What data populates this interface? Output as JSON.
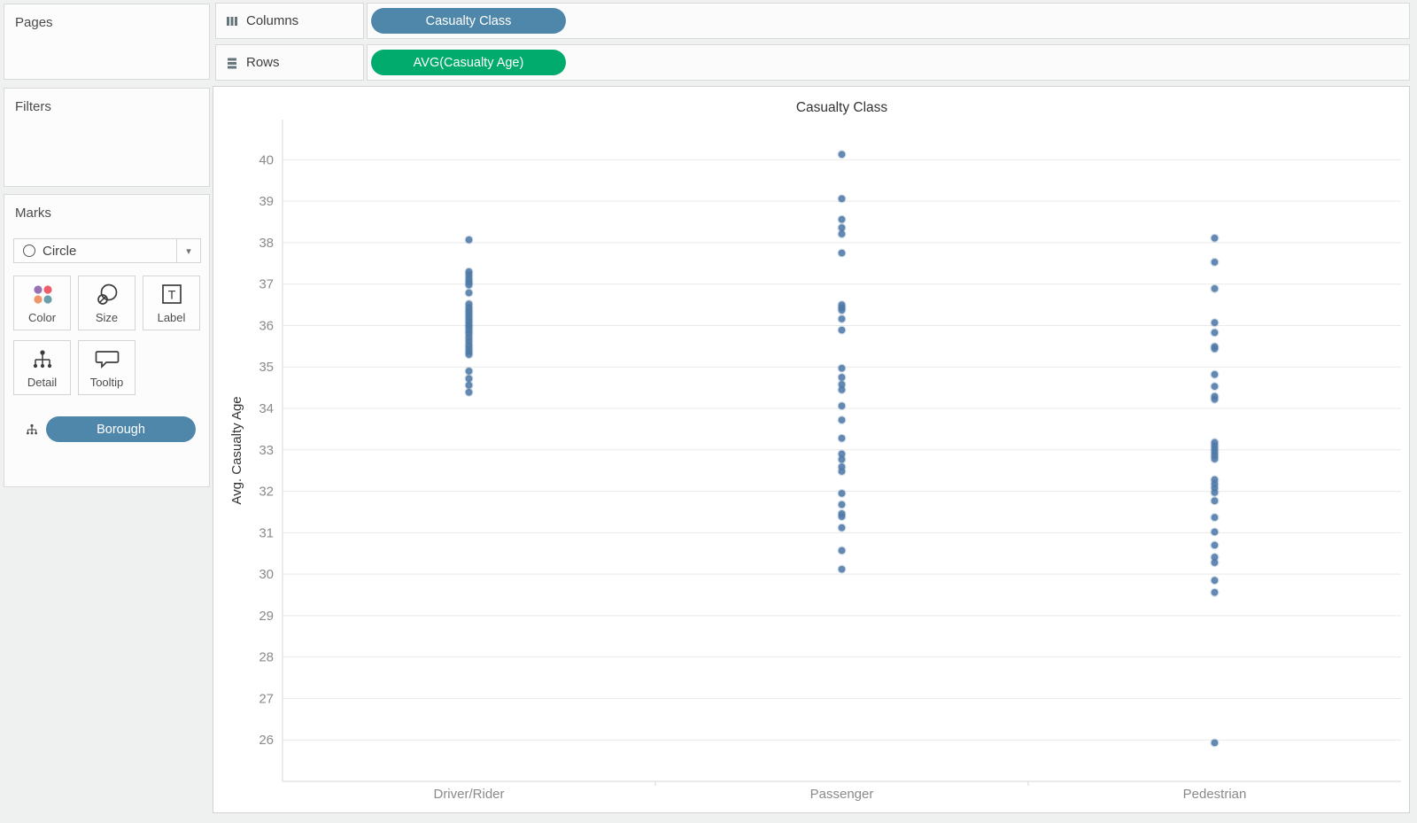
{
  "left_panel": {
    "pages": {
      "title": "Pages"
    },
    "filters": {
      "title": "Filters"
    },
    "marks": {
      "title": "Marks",
      "mark_type": "Circle",
      "buttons": [
        {
          "label": "Color",
          "icon": "color-dots-icon"
        },
        {
          "label": "Size",
          "icon": "size-circles-icon"
        },
        {
          "label": "Label",
          "icon": "label-t-icon"
        },
        {
          "label": "Detail",
          "icon": "detail-tree-icon"
        },
        {
          "label": "Tooltip",
          "icon": "tooltip-bubble-icon"
        }
      ],
      "color_icon_dots": [
        "#9672b4",
        "#ee5d6c",
        "#f0956a",
        "#6a9fab"
      ],
      "pills": [
        {
          "label": "Borough",
          "color": "#4f87aa",
          "icon": "detail-tree-icon"
        }
      ]
    }
  },
  "shelves": {
    "columns": {
      "label": "Columns",
      "pills": [
        {
          "label": "Casualty Class",
          "color": "#4f87aa"
        }
      ]
    },
    "rows": {
      "label": "Rows",
      "pills": [
        {
          "label": "AVG(Casualty Age)",
          "color": "#00ab6d"
        }
      ]
    }
  },
  "chart_data": {
    "type": "scatter",
    "title": "Casualty Class",
    "xlabel": "",
    "ylabel": "Avg. Casualty Age",
    "categories": [
      "Driver/Rider",
      "Passenger",
      "Pedestrian"
    ],
    "ylim": [
      25.0,
      40.97
    ],
    "yticks": [
      26,
      27,
      28,
      29,
      30,
      31,
      32,
      33,
      34,
      35,
      36,
      37,
      38,
      39,
      40
    ],
    "grid": true,
    "legend": "none",
    "marker_color": "#4e79a7",
    "grid_color": "#e9e9e9",
    "axis_color": "#d7d7d7",
    "tick_label_color": "#8a8a8a",
    "title_color": "#333333",
    "series": [
      {
        "name": "Driver/Rider",
        "values": [
          38.07,
          37.3,
          37.22,
          37.13,
          37.05,
          36.98,
          36.79,
          36.52,
          36.43,
          36.35,
          36.27,
          36.19,
          36.11,
          36.03,
          35.96,
          35.88,
          35.8,
          35.71,
          35.62,
          35.53,
          35.45,
          35.37,
          35.3,
          34.9,
          34.72,
          34.56,
          34.39
        ]
      },
      {
        "name": "Passenger",
        "values": [
          40.13,
          39.06,
          38.56,
          38.36,
          38.21,
          37.75,
          36.5,
          36.43,
          36.37,
          36.16,
          35.89,
          34.97,
          34.75,
          34.58,
          34.45,
          34.06,
          33.72,
          33.28,
          32.9,
          32.77,
          32.59,
          32.48,
          31.95,
          31.68,
          31.46,
          31.39,
          31.12,
          30.57,
          30.12
        ]
      },
      {
        "name": "Pedestrian",
        "values": [
          38.11,
          37.53,
          36.89,
          36.07,
          35.83,
          35.49,
          35.44,
          34.82,
          34.53,
          34.29,
          34.22,
          33.18,
          33.1,
          33.02,
          32.94,
          32.86,
          32.78,
          32.28,
          32.18,
          32.08,
          31.97,
          31.77,
          31.37,
          31.02,
          30.7,
          30.41,
          30.28,
          29.85,
          29.56,
          25.93
        ]
      }
    ]
  }
}
